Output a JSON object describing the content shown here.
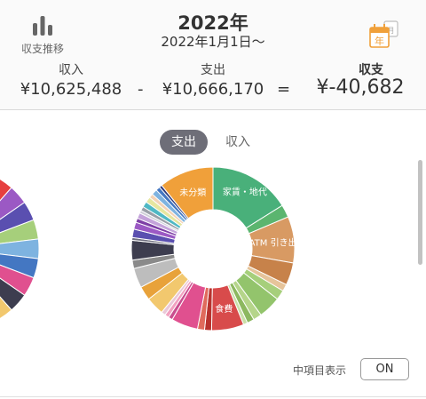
{
  "header": {
    "trend_label": "収支推移",
    "year_title": "2022年",
    "date_range": "2022年1月1日〜",
    "year_icon_text": "年",
    "year_icon": "calendar-year-icon"
  },
  "summary": {
    "income_label": "収入",
    "income_value": "¥10,625,488",
    "minus": "-",
    "expense_label": "支出",
    "expense_value": "¥10,666,170",
    "equals": "=",
    "balance_label": "収支",
    "balance_value": "¥-40,682"
  },
  "tabs": {
    "expense": "支出",
    "income": "収入",
    "selected": "支出"
  },
  "chart_data": {
    "type": "pie",
    "style": "donut",
    "slices": [
      {
        "label": "家賃・地代",
        "color": "#49b07a"
      },
      {
        "label": "ATM 引き出",
        "color": "#d89a63"
      },
      {
        "label": "食費",
        "color": "#d84b4b"
      },
      {
        "label": "未分類",
        "color": "#f0a03a"
      }
    ]
  },
  "footer": {
    "mid_item_label": "中項目表示",
    "toggle_value": "ON"
  }
}
